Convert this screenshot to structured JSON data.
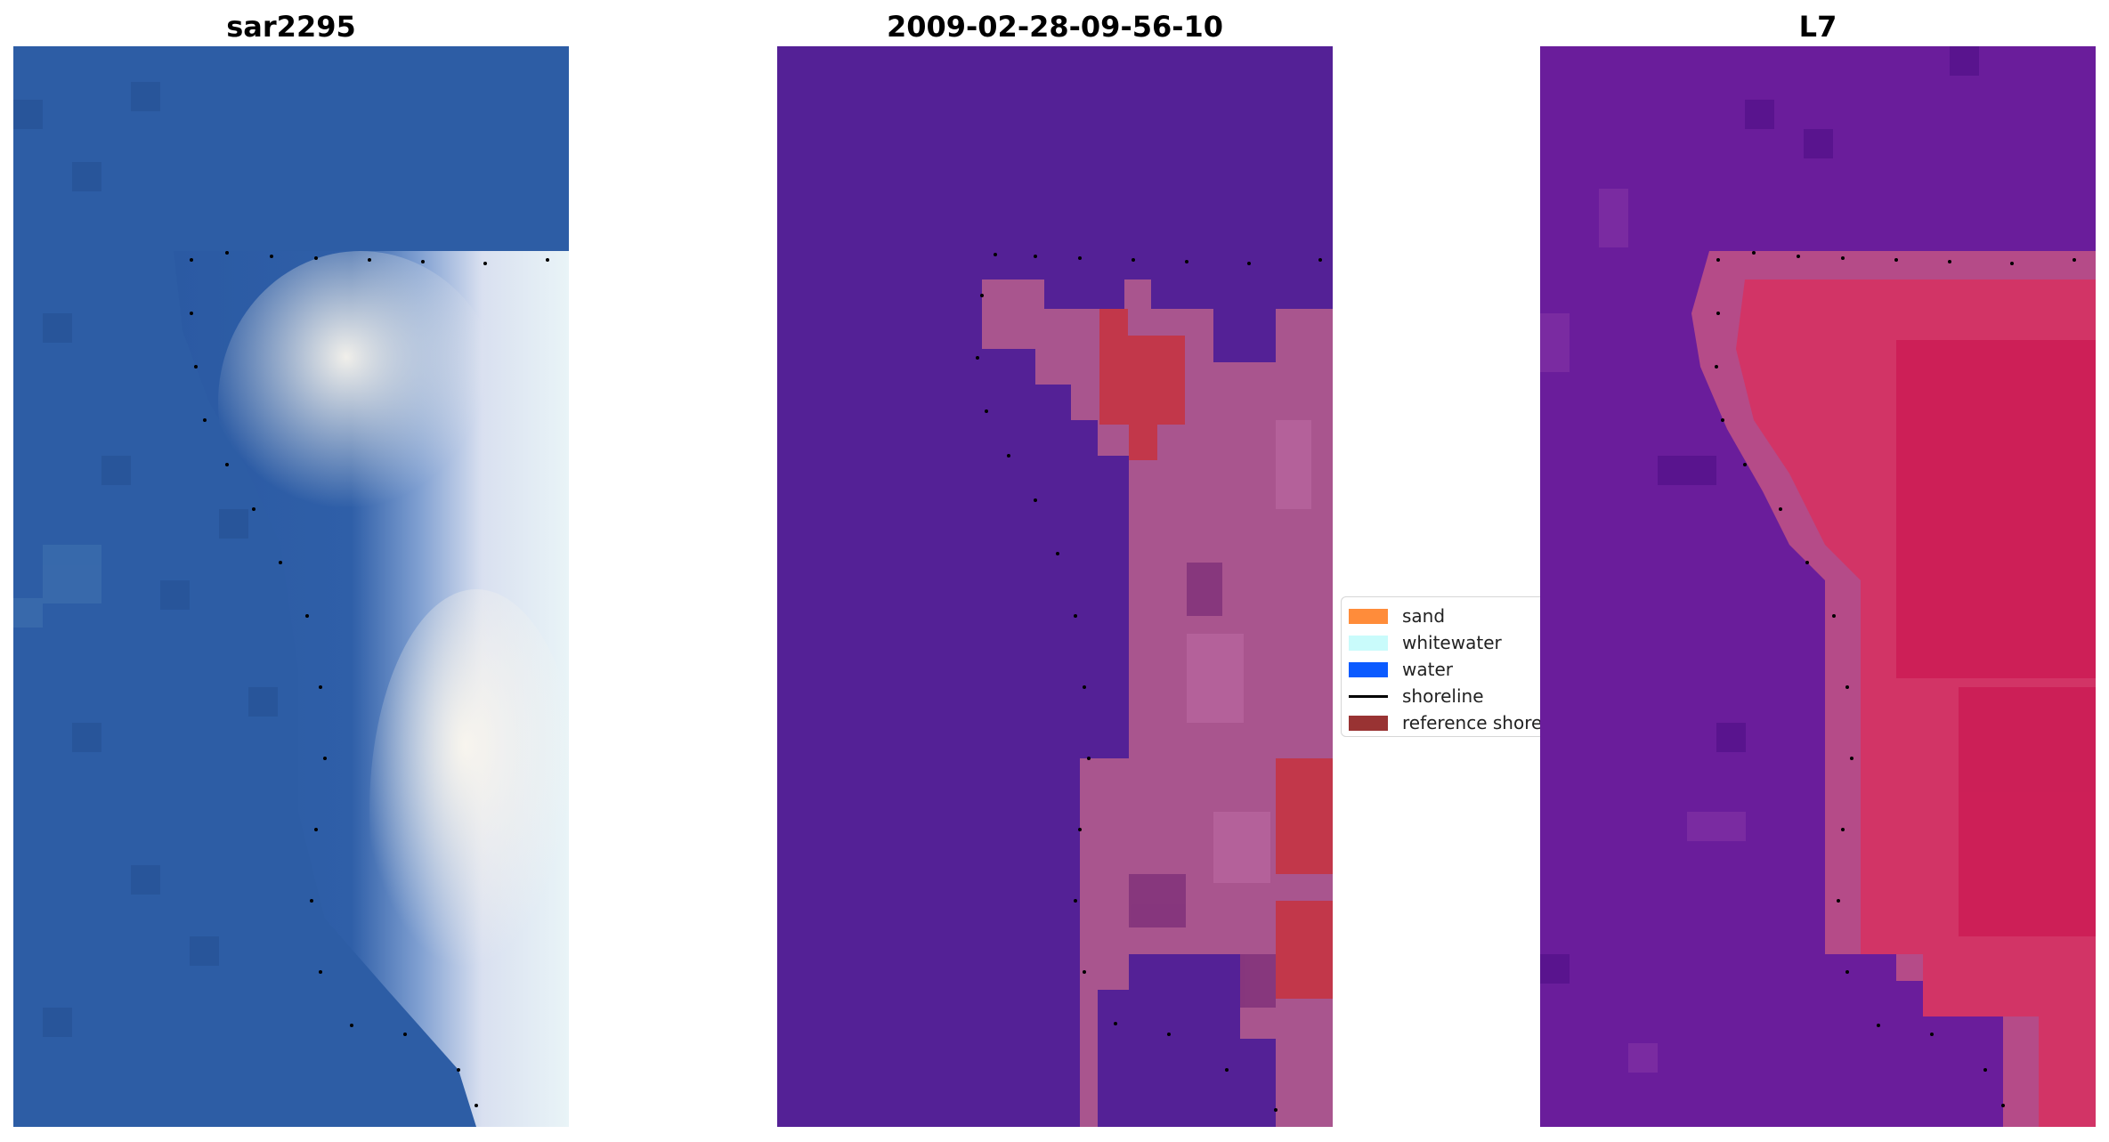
{
  "panels": [
    {
      "title": "sar2295",
      "colors": {
        "water": "#2f5fa6",
        "shore": "#c9d5e8",
        "bright": "#f4f2ec"
      }
    },
    {
      "title": "2009-02-28-09-56-10",
      "colors": {
        "water": "#542196",
        "land": "#a9558e",
        "sand": "#c2374a"
      }
    },
    {
      "title": "L7",
      "colors": {
        "water": "#6a1d9b",
        "land": "#d23466",
        "mid": "#c64685"
      }
    }
  ],
  "legend": {
    "items": [
      {
        "label": "sand",
        "color": "#ff8c3a"
      },
      {
        "label": "whitewater",
        "color": "#c9fbfb"
      },
      {
        "label": "water",
        "color": "#0b5bff"
      },
      {
        "label": "shoreline",
        "color": "#000000"
      },
      {
        "label": "reference shoreline",
        "color": "#993333"
      }
    ]
  }
}
